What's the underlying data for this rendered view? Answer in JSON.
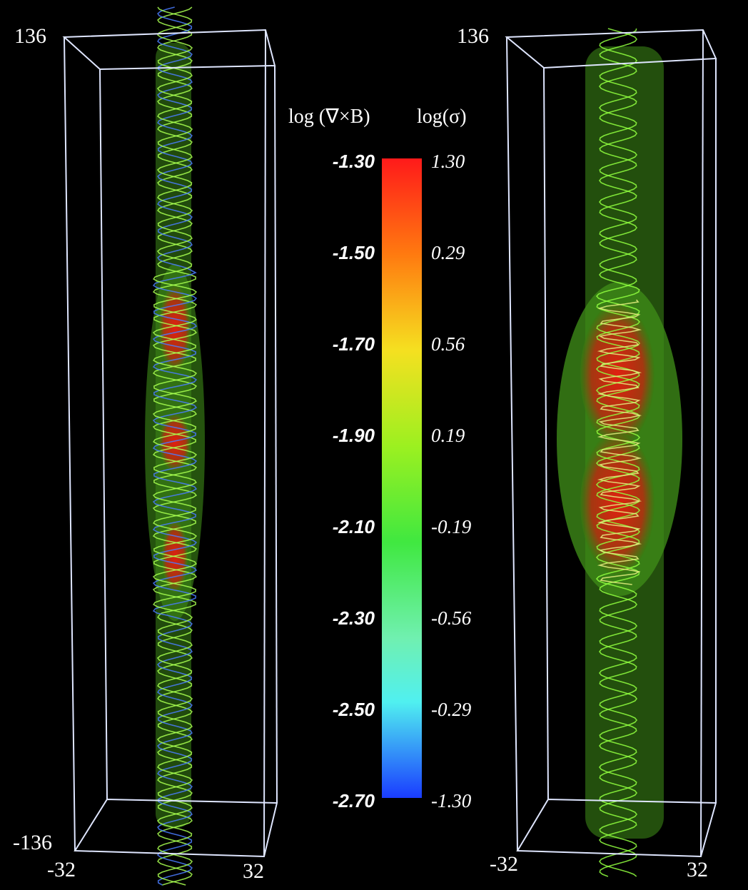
{
  "panels": [
    {
      "axis_labels": {
        "top": "136",
        "bottom": "-136",
        "x_left": "-32",
        "x_right": "32"
      }
    },
    {
      "axis_labels": {
        "top": "136",
        "x_left": "-32",
        "x_right": "32"
      }
    }
  ],
  "colorbar": {
    "left_title": "log (∇×B)",
    "right_title": "log(σ)",
    "left_labels": [
      "-1.30",
      "-1.50",
      "-1.70",
      "-1.90",
      "-2.10",
      "-2.30",
      "-2.50",
      "-2.70"
    ],
    "right_labels": [
      "1.30",
      "0.29",
      "0.56",
      "0.19",
      "-0.19",
      "-0.56",
      "-0.29",
      "-1.30"
    ]
  }
}
